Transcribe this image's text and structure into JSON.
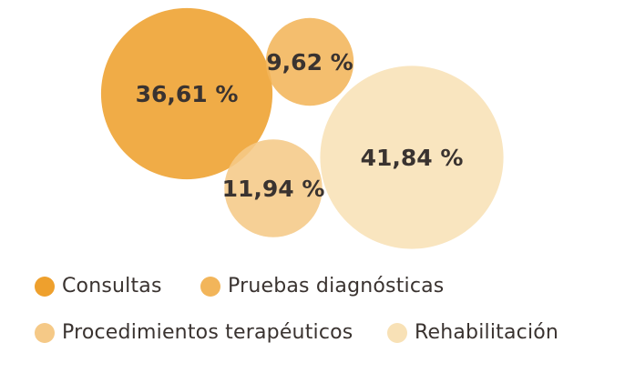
{
  "chart_data": {
    "type": "bubble",
    "series": [
      {
        "name": "Consultas",
        "value": 36.61,
        "label": "36,61 %",
        "color": "#EEA02D"
      },
      {
        "name": "Pruebas diagnósticas",
        "value": 9.62,
        "label": "9,62 %",
        "color": "#F2B55A"
      },
      {
        "name": "Procedimientos terapéuticos",
        "value": 11.94,
        "label": "11,94 %",
        "color": "#F5C987"
      },
      {
        "name": "Rehabilitación",
        "value": 41.84,
        "label": "41,84 %",
        "color": "#F8E1B6"
      }
    ],
    "legend_position": "bottom"
  }
}
